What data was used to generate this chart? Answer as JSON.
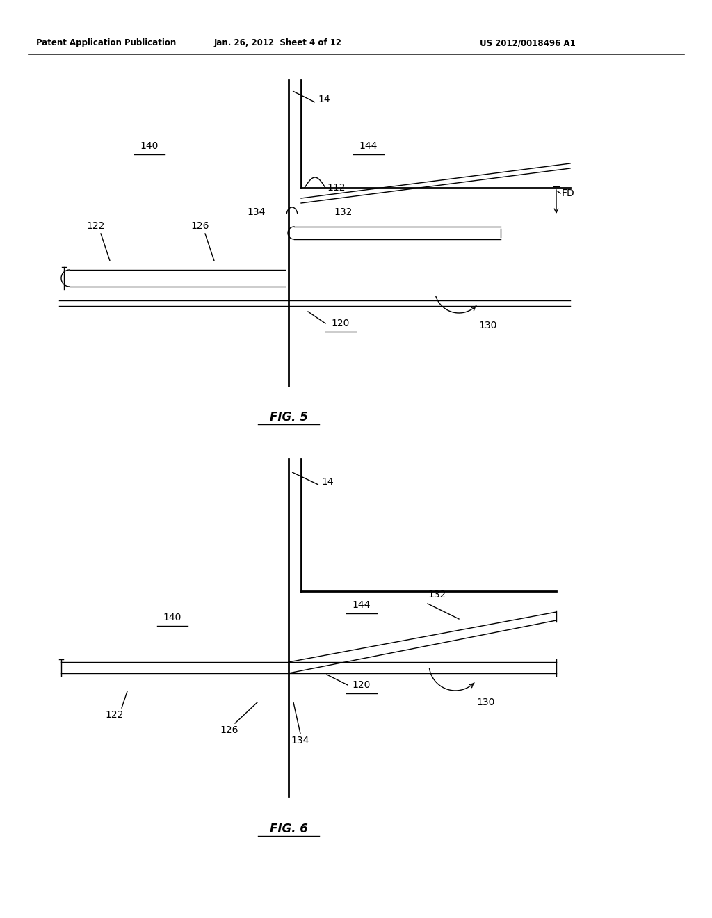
{
  "bg_color": "#ffffff",
  "line_color": "#000000",
  "header_left": "Patent Application Publication",
  "header_mid": "Jan. 26, 2012  Sheet 4 of 12",
  "header_right": "US 2012/0018496 A1",
  "fig5_title": "FIG. 5",
  "fig6_title": "FIG. 6"
}
